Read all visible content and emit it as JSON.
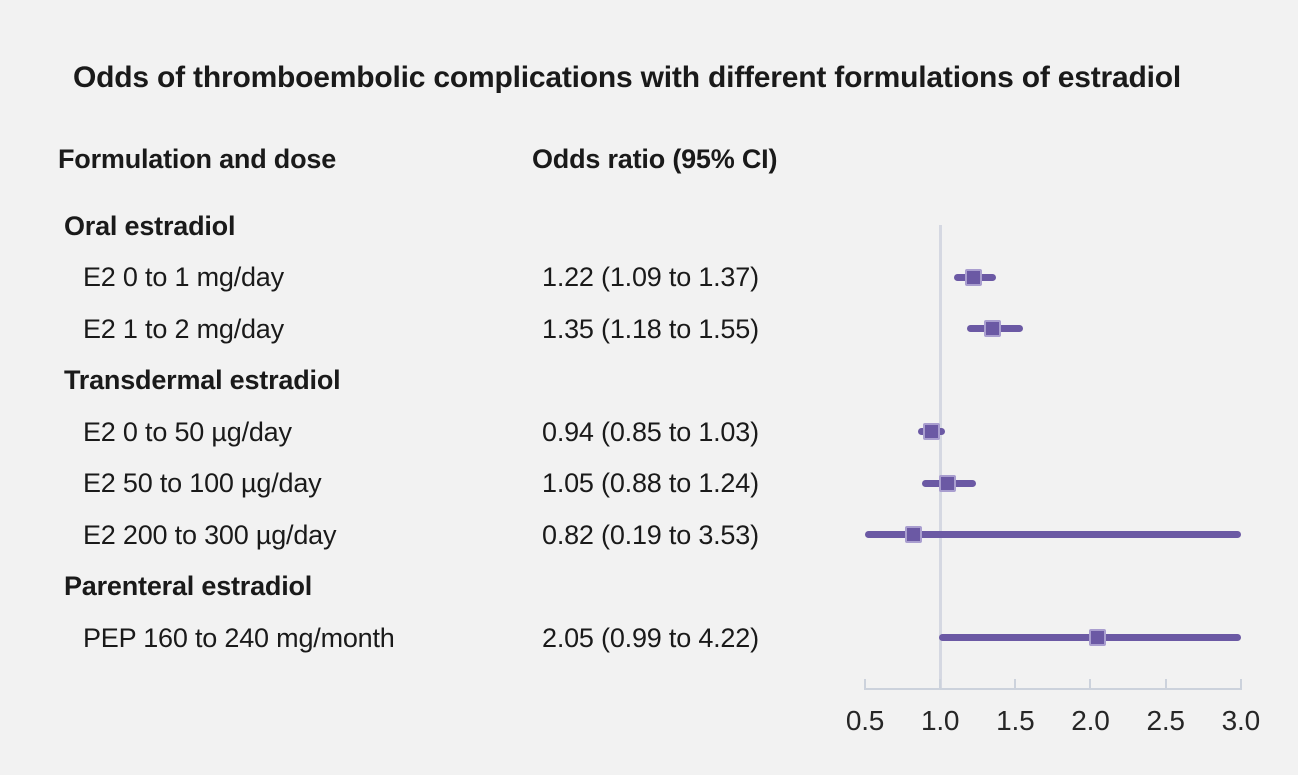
{
  "title": "Odds of thromboembolic complications with different formulations of estradiol",
  "columns": {
    "left": "Formulation and dose",
    "right": "Odds ratio (95% CI)"
  },
  "colors": {
    "background": "#f2f2f2",
    "text": "#1a1a1a",
    "marker_purple": "#6b59a4",
    "marker_edge": "#a99ecf",
    "axis_gray": "#ccd2dc",
    "reference_line_gray": "#d5d8e2"
  },
  "chart_data": {
    "type": "forest",
    "title": "Odds of thromboembolic complications with different formulations of estradiol",
    "xlabel": "Odds ratio (95% CI)",
    "xlim": [
      0.5,
      3.0
    ],
    "reference_line": 1.0,
    "x_ticks": [
      0.5,
      1.0,
      1.5,
      2.0,
      2.5,
      3.0
    ],
    "tick_labels": [
      "0.5",
      "1.0",
      "1.5",
      "2.0",
      "2.5",
      "3.0"
    ],
    "grid": false,
    "legend": "none",
    "rows": [
      {
        "type": "group",
        "label": "Oral estradiol"
      },
      {
        "type": "item",
        "label": "E2 0 to 1 mg/day",
        "or_text": "1.22 (1.09 to 1.37)",
        "est": 1.22,
        "lo": 1.09,
        "hi": 1.37
      },
      {
        "type": "item",
        "label": "E2 1 to 2 mg/day",
        "or_text": "1.35 (1.18 to 1.55)",
        "est": 1.35,
        "lo": 1.18,
        "hi": 1.55
      },
      {
        "type": "group",
        "label": "Transdermal estradiol"
      },
      {
        "type": "item",
        "label": "E2 0 to 50 µg/day",
        "or_text": "0.94 (0.85 to 1.03)",
        "est": 0.94,
        "lo": 0.85,
        "hi": 1.03
      },
      {
        "type": "item",
        "label": "E2 50 to 100 µg/day",
        "or_text": "1.05 (0.88 to 1.24)",
        "est": 1.05,
        "lo": 0.88,
        "hi": 1.24
      },
      {
        "type": "item",
        "label": "E2 200 to 300 µg/day",
        "or_text": "0.82 (0.19 to 3.53)",
        "est": 0.82,
        "lo": 0.19,
        "hi": 3.53
      },
      {
        "type": "group",
        "label": "Parenteral estradiol"
      },
      {
        "type": "item",
        "label": "PEP 160 to 240 mg/month",
        "or_text": "2.05 (0.99 to 4.22)",
        "est": 2.05,
        "lo": 0.99,
        "hi": 4.22
      }
    ]
  }
}
